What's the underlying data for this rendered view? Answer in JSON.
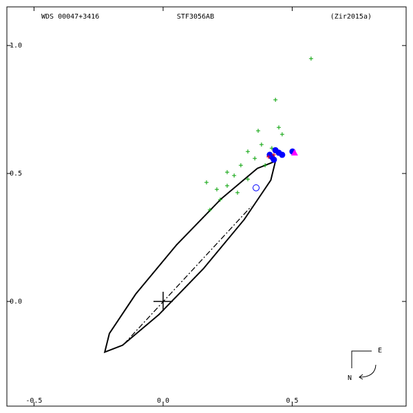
{
  "chart_data": {
    "type": "orbit",
    "header_left": "WDS 00047+3416",
    "title": "STF3056AB",
    "header_right": "(Zir2015a)",
    "compass_east": "E",
    "compass_north": "N",
    "xlim": [
      -0.605,
      0.941
    ],
    "ylim": [
      -1.151,
      0.409
    ],
    "xticks": [
      -0.5,
      {
        "value": 0,
        "label": "0.0"
      },
      0.5
    ],
    "yticks": [
      {
        "value": -1,
        "label": "-1.0"
      },
      -0.5,
      {
        "value": 0,
        "label": "-0.0"
      }
    ],
    "primary": {
      "x": 0,
      "y": 0,
      "color": "#000000"
    },
    "orbit": {
      "color": "#000000",
      "x": [
        0.435,
        0.417,
        0.314,
        0.156,
        -0.017,
        -0.157,
        -0.226,
        -0.208,
        -0.106,
        0.052,
        0.225,
        0.365,
        0.435
      ],
      "y": [
        -0.548,
        -0.474,
        -0.32,
        -0.128,
        0.052,
        0.171,
        0.198,
        0.125,
        -0.029,
        -0.221,
        -0.401,
        -0.52,
        -0.548
      ]
    },
    "node_line": {
      "color": "#000000",
      "x": [
        -0.152,
        0.341
      ],
      "y": [
        0.167,
        -0.371
      ]
    },
    "series": [
      {
        "marker": "plus",
        "color": "#00a000",
        "x": [
          0.573,
          0.435,
          0.248,
          0.181,
          0.221,
          0.301,
          0.368,
          0.461,
          0.328,
          0.288,
          0.381,
          0.168,
          0.421,
          0.248,
          0.328,
          0.395,
          0.275,
          0.208,
          0.355,
          0.448
        ],
        "values": [
          -0.949,
          -0.788,
          -0.505,
          -0.358,
          -0.398,
          -0.532,
          -0.667,
          -0.653,
          -0.478,
          -0.425,
          -0.613,
          -0.465,
          -0.599,
          -0.452,
          -0.586,
          -0.532,
          -0.492,
          -0.438,
          -0.559,
          -0.68
        ]
      },
      {
        "marker": "dot",
        "color": "#0000ff",
        "x": [
          0.421,
          0.435,
          0.448,
          0.429,
          0.461,
          0.413,
          0.501
        ],
        "values": [
          -0.565,
          -0.591,
          -0.581,
          -0.554,
          -0.573,
          -0.573,
          -0.586
        ]
      },
      {
        "marker": "plus",
        "color": "#ff0000",
        "x": [
          0.408,
          0.429
        ],
        "values": [
          -0.565,
          -0.573
        ]
      },
      {
        "marker": "triangle",
        "color": "#ff00ff",
        "x": [
          0.509
        ],
        "values": [
          -0.581
        ]
      },
      {
        "marker": "circle",
        "color": "#0000ff",
        "x": [
          0.36
        ],
        "values": [
          -0.444
        ]
      }
    ]
  }
}
